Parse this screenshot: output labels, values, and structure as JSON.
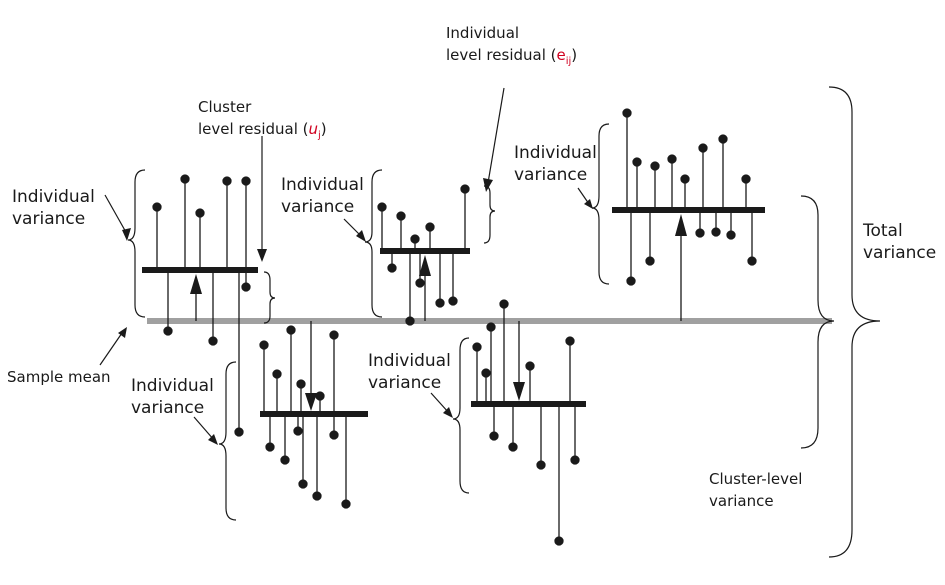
{
  "labels": {
    "individual_variance_1": [
      "Individual",
      "variance"
    ],
    "individual_variance_2": [
      "Individual",
      "variance"
    ],
    "individual_variance_3": [
      "Individual",
      "variance"
    ],
    "individual_variance_4": [
      "Individual",
      "variance"
    ],
    "individual_variance_5": [
      "Individual",
      "variance"
    ],
    "cluster_residual": {
      "line1": "Cluster",
      "line2_prefix": "level residual (",
      "symbol": "u",
      "subscript": "j",
      "suffix": ")"
    },
    "individual_residual": {
      "line1": "Individual",
      "line2_prefix": "level residual (",
      "symbol": "e",
      "subscript": "ij",
      "suffix": ")"
    },
    "sample_mean": "Sample mean",
    "total_variance": [
      "Total",
      "variance"
    ],
    "cluster_level_variance": [
      "Cluster-level",
      "variance"
    ]
  },
  "colors": {
    "ink": "#1a1a1a",
    "mean_line": "#a0a0a0",
    "accent": "#d0001f"
  }
}
